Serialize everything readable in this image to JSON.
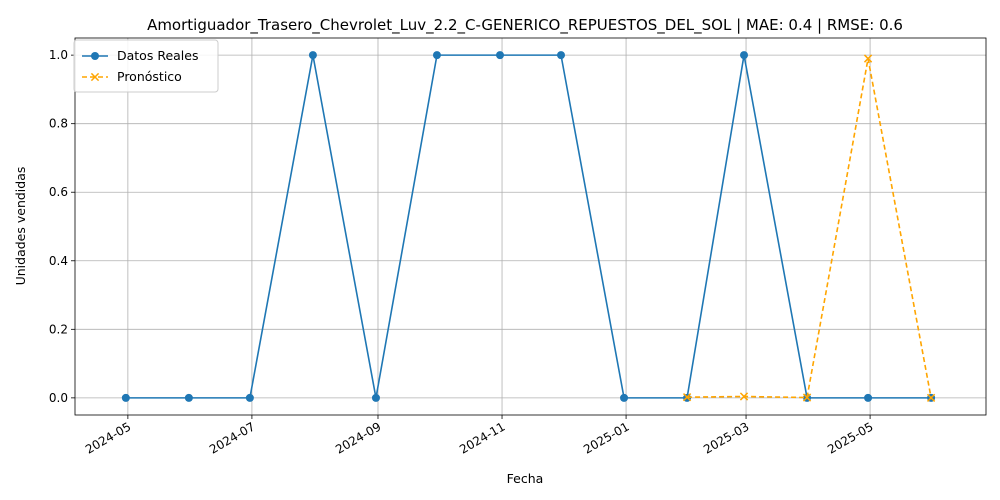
{
  "chart_data": {
    "type": "line",
    "title": "Amortiguador_Trasero_Chevrolet_Luv_2.2_C-GENERICO_REPUESTOS_DEL_SOL | MAE: 0.4 | RMSE: 0.6",
    "xlabel": "Fecha",
    "ylabel": "Unidades vendidas",
    "xlim": [
      "2024-04-05",
      "2025-06-27"
    ],
    "ylim": [
      -0.05,
      1.05
    ],
    "x_ticks": [
      "2024-05",
      "2024-07",
      "2024-09",
      "2024-11",
      "2025-01",
      "2025-03",
      "2025-05"
    ],
    "y_ticks": [
      "0.0",
      "0.2",
      "0.4",
      "0.6",
      "0.8",
      "1.0"
    ],
    "grid": true,
    "legend_position": "top-left",
    "series": [
      {
        "name": "Datos Reales",
        "color": "#1f77b4",
        "marker": "circle",
        "line_style": "solid",
        "x": [
          "2024-04-30",
          "2024-05-31",
          "2024-06-30",
          "2024-07-31",
          "2024-08-31",
          "2024-09-30",
          "2024-10-31",
          "2024-11-30",
          "2024-12-31",
          "2025-01-31",
          "2025-02-28",
          "2025-03-31",
          "2025-04-30",
          "2025-05-31"
        ],
        "values": [
          0,
          0,
          0,
          1,
          0,
          1,
          1,
          1,
          0,
          0,
          1,
          0,
          0,
          0
        ]
      },
      {
        "name": "Pronóstico",
        "color": "#ffa500",
        "marker": "x",
        "line_style": "dashed",
        "x": [
          "2025-01-31",
          "2025-02-28",
          "2025-03-31",
          "2025-04-30",
          "2025-05-31"
        ],
        "values": [
          0.002,
          0.004,
          0.001,
          0.99,
          0.0
        ]
      }
    ]
  }
}
